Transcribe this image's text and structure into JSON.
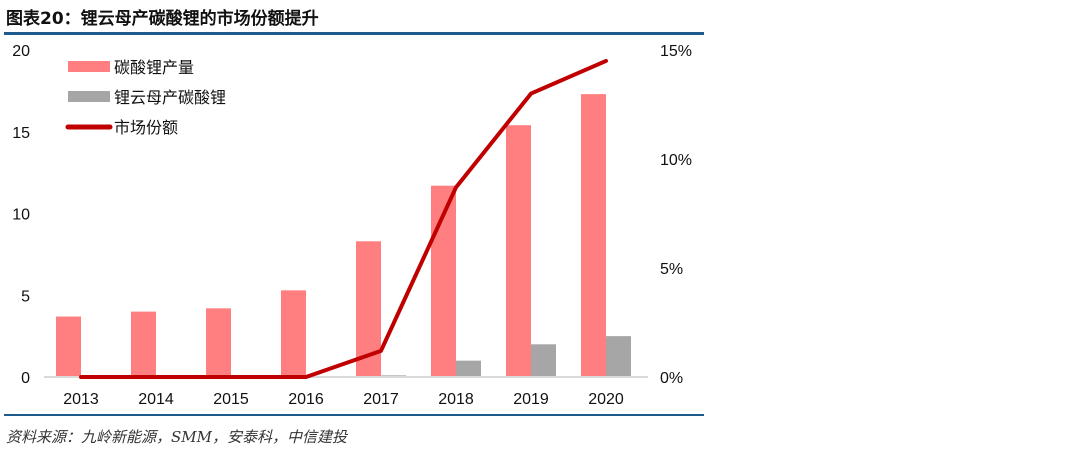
{
  "title": "图表20：锂云母产碳酸锂的市场份额提升",
  "source": "资料来源：九岭新能源，SMM，安泰科，中信建投",
  "chart_data": {
    "type": "bar",
    "categories": [
      "2013",
      "2014",
      "2015",
      "2016",
      "2017",
      "2018",
      "2019",
      "2020"
    ],
    "series": [
      {
        "name": "碳酸锂产量",
        "type": "bar",
        "axis": "left",
        "color": "#ff7f80",
        "values": [
          3.7,
          4.0,
          4.2,
          5.3,
          8.3,
          11.7,
          15.4,
          17.3
        ]
      },
      {
        "name": "锂云母产碳酸锂",
        "type": "bar",
        "axis": "left",
        "color": "#a6a6a6",
        "values": [
          0,
          0,
          0,
          0,
          0.1,
          1.0,
          2.0,
          2.5
        ]
      },
      {
        "name": "市场份额",
        "type": "line",
        "axis": "right",
        "color": "#c00000",
        "values": [
          0,
          0,
          0,
          0,
          1.2,
          8.7,
          13.0,
          14.5
        ]
      }
    ],
    "ylim": [
      0,
      20
    ],
    "yticks": [
      "0",
      "5",
      "10",
      "15",
      "20"
    ],
    "y2lim": [
      0,
      15
    ],
    "y2ticks": [
      "0%",
      "5%",
      "10%",
      "15%"
    ],
    "legend_position": "top-left",
    "grid": false
  }
}
